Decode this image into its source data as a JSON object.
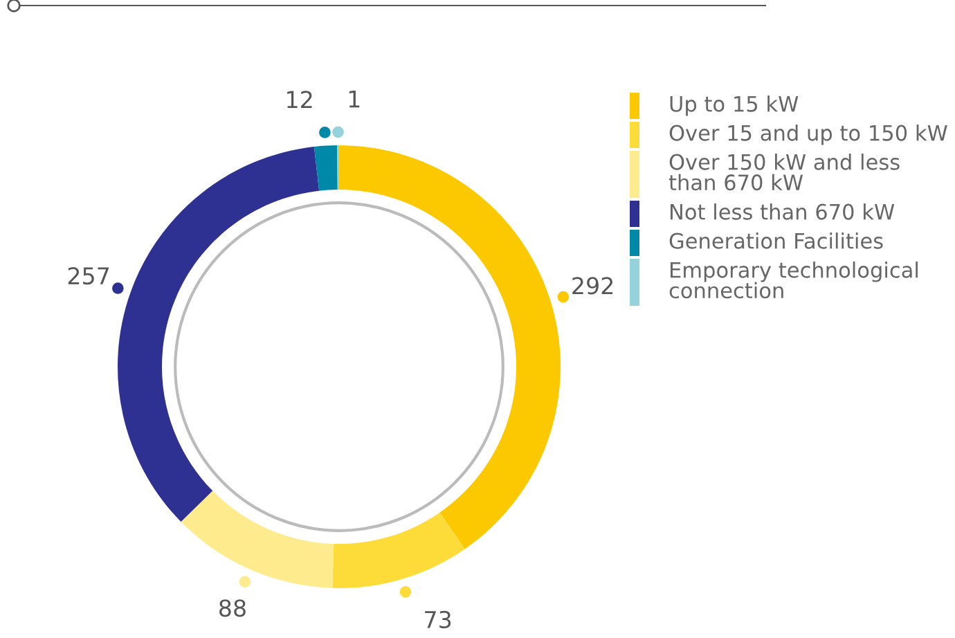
{
  "chart_data": {
    "type": "donut",
    "categories": [
      "Up to 15 kW",
      "Over 15 and up to 150 kW",
      "Over 150 kW and less than 670 kW",
      "Not less than 670 kW",
      "Generation Facilities",
      "Emporary technological connection"
    ],
    "values": [
      292,
      73,
      88,
      257,
      12,
      1
    ],
    "colors": [
      "#fcc800",
      "#fddc3a",
      "#feeb8e",
      "#2e3192",
      "#0088a8",
      "#94d3db"
    ],
    "data_labels": true,
    "legend": "right"
  }
}
